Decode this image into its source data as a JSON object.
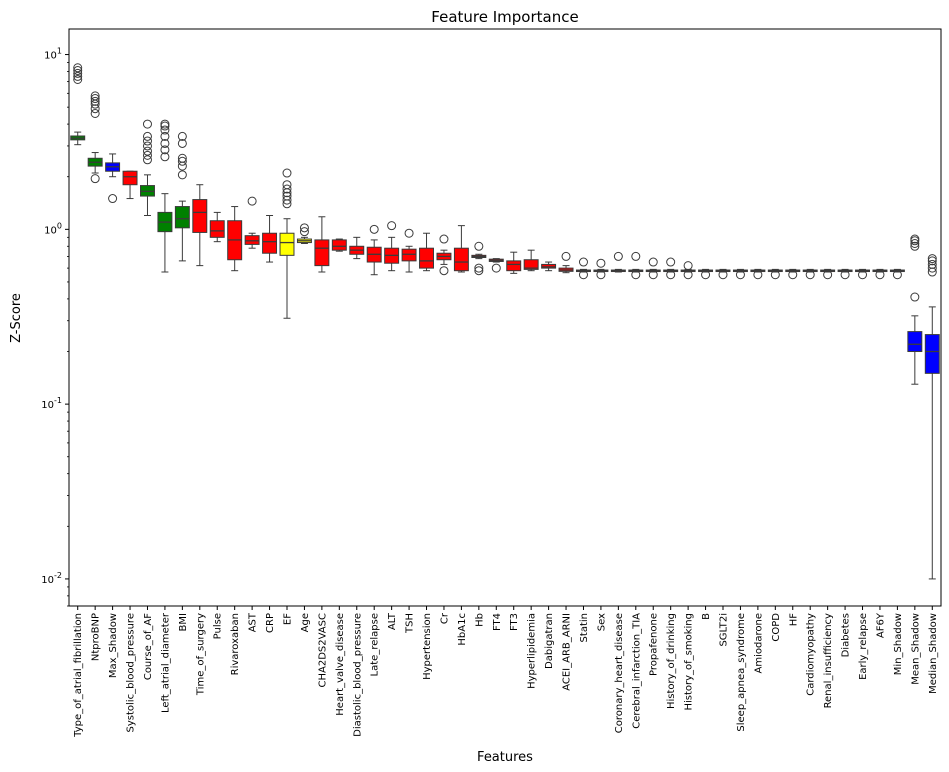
{
  "chart_data": {
    "type": "box",
    "title": "Feature Importance",
    "xlabel": "Features",
    "ylabel": "Z-Score",
    "yscale": "log",
    "ylim": [
      0.007,
      14
    ],
    "yticks": [
      {
        "value": 10,
        "base": "10",
        "exp": "1"
      },
      {
        "value": 1,
        "base": "10",
        "exp": "0"
      },
      {
        "value": 0.1,
        "base": "10",
        "exp": "-1"
      },
      {
        "value": 0.01,
        "base": "10",
        "exp": "-2"
      }
    ],
    "grid": false,
    "legend": "none",
    "colors": {
      "red": "#ff0000",
      "green": "#008000",
      "blue": "#0000ff",
      "yellow": "#ffff00"
    },
    "boxes": [
      {
        "name": "Type_of_atrial_fibrillation",
        "color": "#008000",
        "whislo": 3.05,
        "q1": 3.25,
        "med": 3.32,
        "q3": 3.42,
        "whishi": 3.6,
        "fliers": [
          7.2,
          7.5,
          7.8,
          8.1,
          8.4
        ]
      },
      {
        "name": "NtproBNP",
        "color": "#008000",
        "whislo": 2.1,
        "q1": 2.3,
        "med": 2.42,
        "q3": 2.55,
        "whishi": 2.75,
        "fliers": [
          1.95,
          4.6,
          4.9,
          5.2,
          5.4,
          5.6,
          5.8
        ]
      },
      {
        "name": "Max_Shadow",
        "color": "#0000ff",
        "whislo": 2.0,
        "q1": 2.15,
        "med": 2.28,
        "q3": 2.4,
        "whishi": 2.7,
        "fliers": [
          1.5
        ]
      },
      {
        "name": "Systolic_blood_pressure",
        "color": "#ff0000",
        "whislo": 1.5,
        "q1": 1.8,
        "med": 2.0,
        "q3": 2.15,
        "whishi": 2.15,
        "fliers": []
      },
      {
        "name": "Course_of_AF",
        "color": "#008000",
        "whislo": 1.2,
        "q1": 1.55,
        "med": 1.65,
        "q3": 1.78,
        "whishi": 2.05,
        "fliers": [
          2.5,
          2.65,
          2.8,
          3.0,
          3.2,
          3.4,
          4.0
        ]
      },
      {
        "name": "Left_atrial_diameter",
        "color": "#008000",
        "whislo": 0.57,
        "q1": 0.97,
        "med": 1.1,
        "q3": 1.25,
        "whishi": 1.6,
        "fliers": [
          2.6,
          2.85,
          3.1,
          3.4,
          3.7,
          3.9,
          4.0
        ]
      },
      {
        "name": "BMI",
        "color": "#008000",
        "whislo": 0.66,
        "q1": 1.02,
        "med": 1.15,
        "q3": 1.35,
        "whishi": 1.45,
        "fliers": [
          2.05,
          2.3,
          2.45,
          2.55,
          3.1,
          3.4
        ]
      },
      {
        "name": "Time_of_surgery",
        "color": "#ff0000",
        "whislo": 0.62,
        "q1": 0.96,
        "med": 1.25,
        "q3": 1.48,
        "whishi": 1.8,
        "fliers": []
      },
      {
        "name": "Pulse",
        "color": "#ff0000",
        "whislo": 0.85,
        "q1": 0.9,
        "med": 0.98,
        "q3": 1.12,
        "whishi": 1.25,
        "fliers": []
      },
      {
        "name": "Rivaroxaban",
        "color": "#ff0000",
        "whislo": 0.58,
        "q1": 0.67,
        "med": 0.87,
        "q3": 1.12,
        "whishi": 1.35,
        "fliers": []
      },
      {
        "name": "AST",
        "color": "#ff0000",
        "whislo": 0.78,
        "q1": 0.82,
        "med": 0.86,
        "q3": 0.92,
        "whishi": 0.95,
        "fliers": [
          1.45
        ]
      },
      {
        "name": "CRP",
        "color": "#ff0000",
        "whislo": 0.65,
        "q1": 0.73,
        "med": 0.85,
        "q3": 0.95,
        "whishi": 1.2,
        "fliers": []
      },
      {
        "name": "EF",
        "color": "#ffff00",
        "whislo": 0.31,
        "q1": 0.71,
        "med": 0.84,
        "q3": 0.95,
        "whishi": 1.15,
        "fliers": [
          1.4,
          1.47,
          1.55,
          1.62,
          1.7,
          1.8,
          2.1
        ]
      },
      {
        "name": "Age",
        "color": "#ffff00",
        "whislo": 0.83,
        "q1": 0.84,
        "med": 0.86,
        "q3": 0.88,
        "whishi": 0.9,
        "fliers": [
          0.97,
          1.02
        ]
      },
      {
        "name": "CHA2DS2VASC",
        "color": "#ff0000",
        "whislo": 0.57,
        "q1": 0.62,
        "med": 0.78,
        "q3": 0.87,
        "whishi": 1.18,
        "fliers": []
      },
      {
        "name": "Heart_valve_disease",
        "color": "#ff0000",
        "whislo": 0.75,
        "q1": 0.76,
        "med": 0.8,
        "q3": 0.87,
        "whishi": 0.88,
        "fliers": []
      },
      {
        "name": "Diastolic_blood_pressure",
        "color": "#ff0000",
        "whislo": 0.68,
        "q1": 0.72,
        "med": 0.76,
        "q3": 0.8,
        "whishi": 0.9,
        "fliers": []
      },
      {
        "name": "Late_relapse",
        "color": "#ff0000",
        "whislo": 0.55,
        "q1": 0.65,
        "med": 0.72,
        "q3": 0.79,
        "whishi": 0.87,
        "fliers": [
          1.0
        ]
      },
      {
        "name": "ALT",
        "color": "#ff0000",
        "whislo": 0.58,
        "q1": 0.64,
        "med": 0.71,
        "q3": 0.78,
        "whishi": 0.9,
        "fliers": [
          1.05
        ]
      },
      {
        "name": "TSH",
        "color": "#ff0000",
        "whislo": 0.57,
        "q1": 0.66,
        "med": 0.72,
        "q3": 0.77,
        "whishi": 0.8,
        "fliers": [
          0.95
        ]
      },
      {
        "name": "Hypertension",
        "color": "#ff0000",
        "whislo": 0.58,
        "q1": 0.6,
        "med": 0.66,
        "q3": 0.78,
        "whishi": 0.95,
        "fliers": []
      },
      {
        "name": "Cr",
        "color": "#ff0000",
        "whislo": 0.63,
        "q1": 0.67,
        "med": 0.7,
        "q3": 0.73,
        "whishi": 0.76,
        "fliers": [
          0.58,
          0.88
        ]
      },
      {
        "name": "HbA1c",
        "color": "#ff0000",
        "whislo": 0.57,
        "q1": 0.58,
        "med": 0.65,
        "q3": 0.78,
        "whishi": 1.05,
        "fliers": []
      },
      {
        "name": "Hb",
        "color": "#ff0000",
        "whislo": 0.68,
        "q1": 0.69,
        "med": 0.7,
        "q3": 0.71,
        "whishi": 0.72,
        "fliers": [
          0.58,
          0.6,
          0.8
        ]
      },
      {
        "name": "FT4",
        "color": "#ff0000",
        "whislo": 0.65,
        "q1": 0.655,
        "med": 0.665,
        "q3": 0.675,
        "whishi": 0.68,
        "fliers": [
          0.6
        ]
      },
      {
        "name": "FT3",
        "color": "#ff0000",
        "whislo": 0.56,
        "q1": 0.58,
        "med": 0.63,
        "q3": 0.66,
        "whishi": 0.74,
        "fliers": []
      },
      {
        "name": "Hyperlipidemia",
        "color": "#ff0000",
        "whislo": 0.58,
        "q1": 0.59,
        "med": 0.6,
        "q3": 0.67,
        "whishi": 0.76,
        "fliers": []
      },
      {
        "name": "Dabigatran",
        "color": "#ff0000",
        "whislo": 0.58,
        "q1": 0.6,
        "med": 0.61,
        "q3": 0.63,
        "whishi": 0.65,
        "fliers": []
      },
      {
        "name": "ACEI_ARB_ARNI",
        "color": "#ff0000",
        "whislo": 0.565,
        "q1": 0.575,
        "med": 0.585,
        "q3": 0.6,
        "whishi": 0.62,
        "fliers": [
          0.7
        ]
      },
      {
        "name": "Statin",
        "color": "#ff0000",
        "whislo": 0.57,
        "q1": 0.575,
        "med": 0.58,
        "q3": 0.585,
        "whishi": 0.59,
        "fliers": [
          0.55,
          0.65
        ]
      },
      {
        "name": "Sex",
        "color": "#ff0000",
        "whislo": 0.57,
        "q1": 0.575,
        "med": 0.58,
        "q3": 0.585,
        "whishi": 0.59,
        "fliers": [
          0.55,
          0.64
        ]
      },
      {
        "name": "Coronary_heart_disease",
        "color": "#ff0000",
        "whislo": 0.57,
        "q1": 0.575,
        "med": 0.58,
        "q3": 0.585,
        "whishi": 0.59,
        "fliers": [
          0.7
        ]
      },
      {
        "name": "Cerebral_infarction_TIA",
        "color": "#ff0000",
        "whislo": 0.57,
        "q1": 0.575,
        "med": 0.58,
        "q3": 0.585,
        "whishi": 0.59,
        "fliers": [
          0.55,
          0.7
        ]
      },
      {
        "name": "Propafenone",
        "color": "#ff0000",
        "whislo": 0.57,
        "q1": 0.575,
        "med": 0.58,
        "q3": 0.585,
        "whishi": 0.59,
        "fliers": [
          0.55,
          0.65
        ]
      },
      {
        "name": "History_of_drinking",
        "color": "#ff0000",
        "whislo": 0.57,
        "q1": 0.575,
        "med": 0.58,
        "q3": 0.585,
        "whishi": 0.59,
        "fliers": [
          0.55,
          0.65
        ]
      },
      {
        "name": "History_of_smoking",
        "color": "#ff0000",
        "whislo": 0.57,
        "q1": 0.575,
        "med": 0.58,
        "q3": 0.585,
        "whishi": 0.59,
        "fliers": [
          0.55,
          0.62
        ]
      },
      {
        "name": "B",
        "color": "#ff0000",
        "whislo": 0.57,
        "q1": 0.575,
        "med": 0.58,
        "q3": 0.585,
        "whishi": 0.59,
        "fliers": [
          0.55
        ]
      },
      {
        "name": "SGLT2i",
        "color": "#ff0000",
        "whislo": 0.57,
        "q1": 0.575,
        "med": 0.58,
        "q3": 0.585,
        "whishi": 0.59,
        "fliers": [
          0.55
        ]
      },
      {
        "name": "Sleep_apnea_syndrome",
        "color": "#ff0000",
        "whislo": 0.57,
        "q1": 0.575,
        "med": 0.58,
        "q3": 0.585,
        "whishi": 0.59,
        "fliers": [
          0.55
        ]
      },
      {
        "name": "Amiodarone",
        "color": "#ff0000",
        "whislo": 0.57,
        "q1": 0.575,
        "med": 0.58,
        "q3": 0.585,
        "whishi": 0.59,
        "fliers": [
          0.55
        ]
      },
      {
        "name": "COPD",
        "color": "#ff0000",
        "whislo": 0.57,
        "q1": 0.575,
        "med": 0.58,
        "q3": 0.585,
        "whishi": 0.59,
        "fliers": [
          0.55
        ]
      },
      {
        "name": "HF",
        "color": "#ff0000",
        "whislo": 0.57,
        "q1": 0.575,
        "med": 0.58,
        "q3": 0.585,
        "whishi": 0.59,
        "fliers": [
          0.55
        ]
      },
      {
        "name": "Cardiomyopathy",
        "color": "#ff0000",
        "whislo": 0.57,
        "q1": 0.575,
        "med": 0.58,
        "q3": 0.585,
        "whishi": 0.59,
        "fliers": [
          0.55
        ]
      },
      {
        "name": "Renal_insufficiency",
        "color": "#ff0000",
        "whislo": 0.57,
        "q1": 0.575,
        "med": 0.58,
        "q3": 0.585,
        "whishi": 0.59,
        "fliers": [
          0.55
        ]
      },
      {
        "name": "Diabetes",
        "color": "#ff0000",
        "whislo": 0.57,
        "q1": 0.575,
        "med": 0.58,
        "q3": 0.585,
        "whishi": 0.59,
        "fliers": [
          0.55
        ]
      },
      {
        "name": "Early_relapse",
        "color": "#ff0000",
        "whislo": 0.57,
        "q1": 0.575,
        "med": 0.58,
        "q3": 0.585,
        "whishi": 0.59,
        "fliers": [
          0.55
        ]
      },
      {
        "name": "AF6Y",
        "color": "#ff0000",
        "whislo": 0.57,
        "q1": 0.575,
        "med": 0.58,
        "q3": 0.585,
        "whishi": 0.59,
        "fliers": [
          0.55
        ]
      },
      {
        "name": "Min_Shadow",
        "color": "#0000ff",
        "whislo": 0.57,
        "q1": 0.575,
        "med": 0.58,
        "q3": 0.585,
        "whishi": 0.59,
        "fliers": [
          0.55
        ]
      },
      {
        "name": "Mean_Shadow",
        "color": "#0000ff",
        "whislo": 0.13,
        "q1": 0.2,
        "med": 0.22,
        "q3": 0.26,
        "whishi": 0.32,
        "fliers": [
          0.41,
          0.8,
          0.83,
          0.86,
          0.88
        ]
      },
      {
        "name": "Median_Shadow",
        "color": "#0000ff",
        "whislo": 0.01,
        "q1": 0.15,
        "med": 0.2,
        "q3": 0.25,
        "whishi": 0.36,
        "fliers": [
          0.57,
          0.6,
          0.63,
          0.66,
          0.68
        ]
      }
    ]
  }
}
